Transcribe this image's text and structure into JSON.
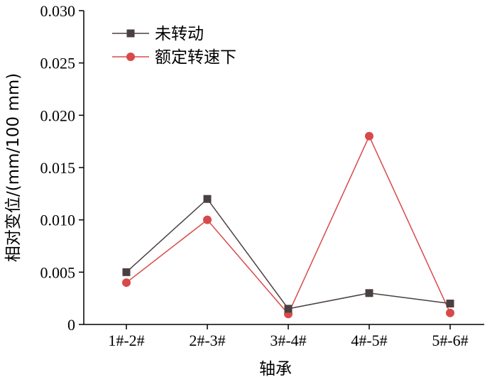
{
  "chart_data": {
    "type": "line",
    "title": "",
    "xlabel": "轴承",
    "ylabel": "相对变位/(mm/100 mm)",
    "categories": [
      "1#-2#",
      "2#-3#",
      "3#-4#",
      "4#-5#",
      "5#-6#"
    ],
    "ylim": [
      0,
      0.03
    ],
    "yticks": [
      "0",
      "0.005",
      "0.010",
      "0.015",
      "0.020",
      "0.025",
      "0.030"
    ],
    "grid": false,
    "legend": "top-left",
    "series": [
      {
        "name": "未转动",
        "values": [
          0.005,
          0.012,
          0.0015,
          0.003,
          0.002
        ],
        "color": "#4a4040",
        "marker": "square"
      },
      {
        "name": "额定转速下",
        "values": [
          0.004,
          0.01,
          0.001,
          0.018,
          0.0011
        ],
        "color": "#d84a4a",
        "marker": "circle"
      }
    ]
  }
}
